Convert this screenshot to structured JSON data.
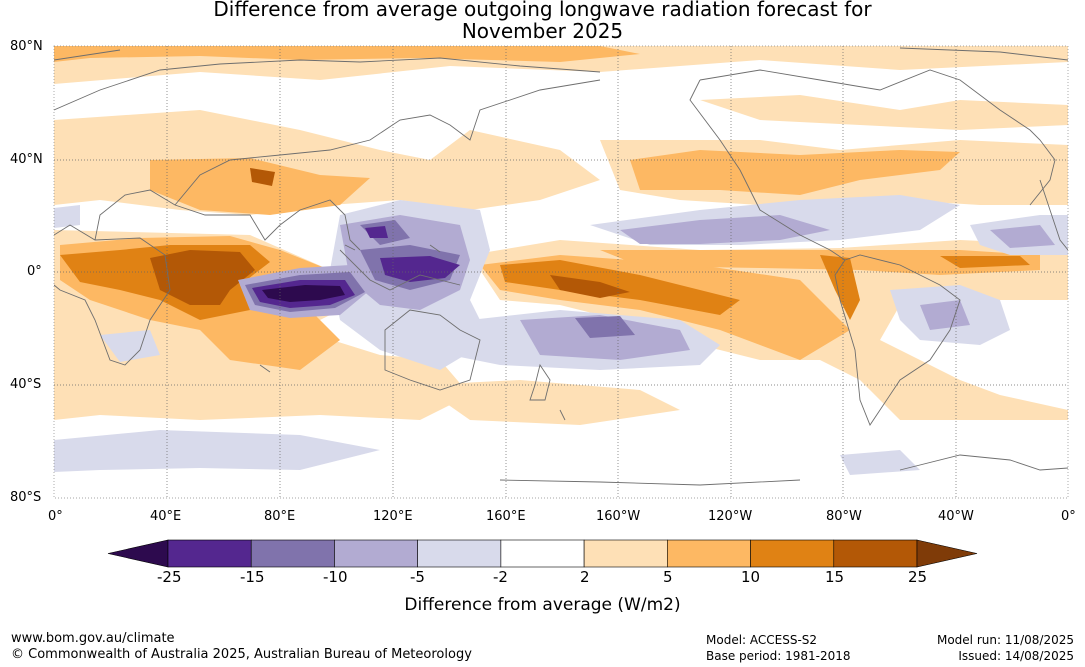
{
  "title_line1": "Difference from average outgoing longwave radiation forecast for",
  "title_line2": "November 2025",
  "lat_labels": [
    "80°N",
    "40°N",
    "0°",
    "40°S",
    "80°S"
  ],
  "lon_labels": [
    "0°",
    "40°E",
    "80°E",
    "120°E",
    "160°E",
    "160°W",
    "120°W",
    "80°W",
    "40°W",
    "0°"
  ],
  "colorbar": {
    "ticks": [
      "-25",
      "-15",
      "-10",
      "-5",
      "-2",
      "2",
      "5",
      "10",
      "15",
      "25"
    ],
    "colors": [
      "#2d0a4e",
      "#54278f",
      "#8073ac",
      "#b2abd2",
      "#d8daeb",
      "#ffffff",
      "#fee0b6",
      "#fdb863",
      "#e08214",
      "#b35806",
      "#7f3b08"
    ],
    "label": "Difference from average (W/m2)"
  },
  "footer": {
    "url": "www.bom.gov.au/climate",
    "copyright": "© Commonwealth of Australia 2025, Australian Bureau of Meteorology",
    "model": "Model: ACCESS-S2",
    "base_period": "Base period: 1981-2018",
    "model_run": "Model run: 11/08/2025",
    "issued": "Issued: 14/08/2025"
  }
}
